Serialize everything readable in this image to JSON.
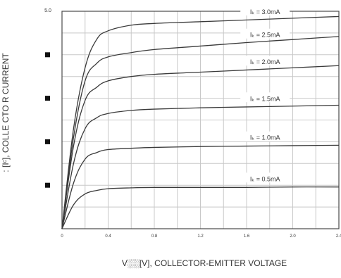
{
  "chart_data": {
    "type": "line",
    "title": "",
    "xlabel": "V░░[V], COLLECTOR-EMITTER VOLTAGE",
    "ylabel": ": [Iᶜ], COLLE CTO  R CURRENT",
    "xlim": [
      0,
      2.4
    ],
    "ylim": [
      0,
      5.0
    ],
    "grid": true,
    "x_ticks": [
      {
        "value": 0,
        "label": "0"
      },
      {
        "value": 0.4,
        "label": "0.4"
      },
      {
        "value": 0.8,
        "label": "0.8"
      },
      {
        "value": 1.2,
        "label": "1.2"
      },
      {
        "value": 1.6,
        "label": "1.6"
      },
      {
        "value": 2.0,
        "label": "2.0"
      },
      {
        "value": 2.4,
        "label": "2.4"
      }
    ],
    "y_top_label": "5.0",
    "y_markers": [
      1.0,
      2.0,
      3.0,
      4.0
    ],
    "series": [
      {
        "name": "Iₖ = 0.5mA",
        "x": [
          0,
          0.1,
          0.2,
          0.3,
          0.4,
          0.6,
          0.8,
          1.2,
          1.6,
          2.0,
          2.4
        ],
        "y": [
          0,
          0.55,
          0.8,
          0.88,
          0.92,
          0.94,
          0.95,
          0.95,
          0.95,
          0.96,
          0.96
        ]
      },
      {
        "name": "Iₖ = 1.0mA",
        "x": [
          0,
          0.1,
          0.2,
          0.3,
          0.4,
          0.6,
          0.8,
          1.2,
          1.6,
          2.0,
          2.4
        ],
        "y": [
          0,
          1.05,
          1.6,
          1.75,
          1.82,
          1.85,
          1.87,
          1.89,
          1.9,
          1.91,
          1.92
        ]
      },
      {
        "name": "Iₖ = 1.5mA",
        "x": [
          0,
          0.1,
          0.2,
          0.3,
          0.4,
          0.6,
          0.8,
          1.2,
          1.6,
          2.0,
          2.4
        ],
        "y": [
          0,
          1.5,
          2.3,
          2.55,
          2.65,
          2.72,
          2.75,
          2.78,
          2.8,
          2.82,
          2.84
        ]
      },
      {
        "name": "Iₖ = 2.0mA",
        "x": [
          0,
          0.1,
          0.2,
          0.3,
          0.4,
          0.6,
          0.8,
          1.2,
          1.6,
          2.0,
          2.4
        ],
        "y": [
          0,
          1.9,
          2.95,
          3.25,
          3.4,
          3.5,
          3.55,
          3.6,
          3.65,
          3.7,
          3.75
        ]
      },
      {
        "name": "Iₖ = 2.5mA",
        "x": [
          0,
          0.1,
          0.2,
          0.3,
          0.4,
          0.6,
          0.8,
          1.2,
          1.6,
          2.0,
          2.4
        ],
        "y": [
          0,
          2.1,
          3.4,
          3.8,
          3.95,
          4.05,
          4.12,
          4.2,
          4.28,
          4.35,
          4.42
        ]
      },
      {
        "name": "Iₖ = 3.0mA",
        "x": [
          0,
          0.1,
          0.2,
          0.3,
          0.4,
          0.6,
          0.8,
          1.2,
          1.6,
          2.0,
          2.4
        ],
        "y": [
          0,
          2.3,
          3.7,
          4.35,
          4.55,
          4.68,
          4.72,
          4.76,
          4.8,
          4.84,
          4.88
        ]
      }
    ],
    "label_positions_x": 1.5
  },
  "colors": {
    "curve": "#3a3a3a",
    "grid": "#c8c8c8",
    "frame": "#4a4a4a",
    "text": "#333333"
  }
}
